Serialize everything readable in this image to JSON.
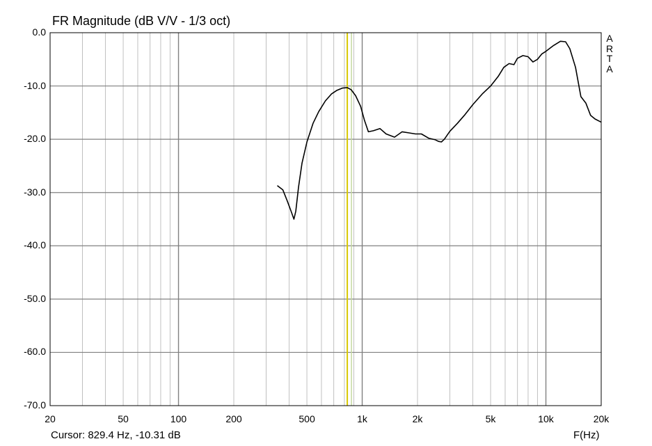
{
  "chart_data": {
    "type": "line",
    "title": "FR Magnitude (dB V/V - 1/3 oct)",
    "xlabel": "F(Hz)",
    "ylabel": "",
    "xscale": "log",
    "xlim": [
      20,
      20000
    ],
    "ylim": [
      -70,
      0
    ],
    "grid": true,
    "x_ticks": [
      {
        "value": 20,
        "label": "20"
      },
      {
        "value": 50,
        "label": "50"
      },
      {
        "value": 100,
        "label": "100"
      },
      {
        "value": 200,
        "label": "200"
      },
      {
        "value": 500,
        "label": "500"
      },
      {
        "value": 1000,
        "label": "1k"
      },
      {
        "value": 2000,
        "label": "2k"
      },
      {
        "value": 5000,
        "label": "5k"
      },
      {
        "value": 10000,
        "label": "10k"
      },
      {
        "value": 20000,
        "label": "20k"
      }
    ],
    "y_ticks": [
      {
        "value": 0,
        "label": "0.0"
      },
      {
        "value": -10,
        "label": "-10.0"
      },
      {
        "value": -20,
        "label": "-20.0"
      },
      {
        "value": -30,
        "label": "-30.0"
      },
      {
        "value": -40,
        "label": "-40.0"
      },
      {
        "value": -50,
        "label": "-50.0"
      },
      {
        "value": -60,
        "label": "-60.0"
      },
      {
        "value": -70,
        "label": "-70.0"
      }
    ],
    "series": [
      {
        "color": "#000000",
        "x": [
          345,
          370,
          390,
          410,
          425,
          435,
          450,
          470,
          500,
          540,
          580,
          630,
          680,
          730,
          780,
          830,
          870,
          920,
          980,
          1030,
          1080,
          1150,
          1250,
          1350,
          1500,
          1650,
          1800,
          1950,
          2100,
          2300,
          2500,
          2600,
          2700,
          2800,
          3000,
          3300,
          3600,
          4000,
          4500,
          5000,
          5500,
          5900,
          6300,
          6700,
          7000,
          7500,
          8000,
          8500,
          9000,
          9500,
          10000,
          11000,
          12000,
          12800,
          13500,
          14500,
          15500,
          16500,
          17500,
          18500,
          20000
        ],
        "values": [
          -28.7,
          -29.5,
          -31.5,
          -33.5,
          -35.0,
          -33.5,
          -29.0,
          -24.5,
          -20.5,
          -17.0,
          -14.8,
          -12.8,
          -11.5,
          -10.8,
          -10.4,
          -10.3,
          -10.7,
          -11.8,
          -13.8,
          -16.5,
          -18.6,
          -18.4,
          -18.0,
          -19.0,
          -19.6,
          -18.6,
          -18.8,
          -19.0,
          -19.0,
          -19.8,
          -20.1,
          -20.4,
          -20.5,
          -20.0,
          -18.5,
          -17.0,
          -15.5,
          -13.5,
          -11.5,
          -10.0,
          -8.2,
          -6.5,
          -5.8,
          -6.0,
          -4.8,
          -4.3,
          -4.5,
          -5.5,
          -5.0,
          -4.0,
          -3.5,
          -2.4,
          -1.6,
          -1.7,
          -3.0,
          -6.5,
          -12.0,
          -13.2,
          -15.5,
          -16.2,
          -16.8
        ]
      }
    ],
    "cursor": {
      "x": 829.4,
      "color": "#d8c800",
      "companion_color": "#c4d8a0"
    },
    "cursor_readout": "Cursor: 829.4 Hz, -10.31 dB",
    "watermark": [
      "A",
      "R",
      "T",
      "A"
    ],
    "colors": {
      "background": "#ffffff",
      "major_grid": "#808080",
      "minor_grid": "#c0c0c0",
      "axes": "#000000"
    }
  }
}
